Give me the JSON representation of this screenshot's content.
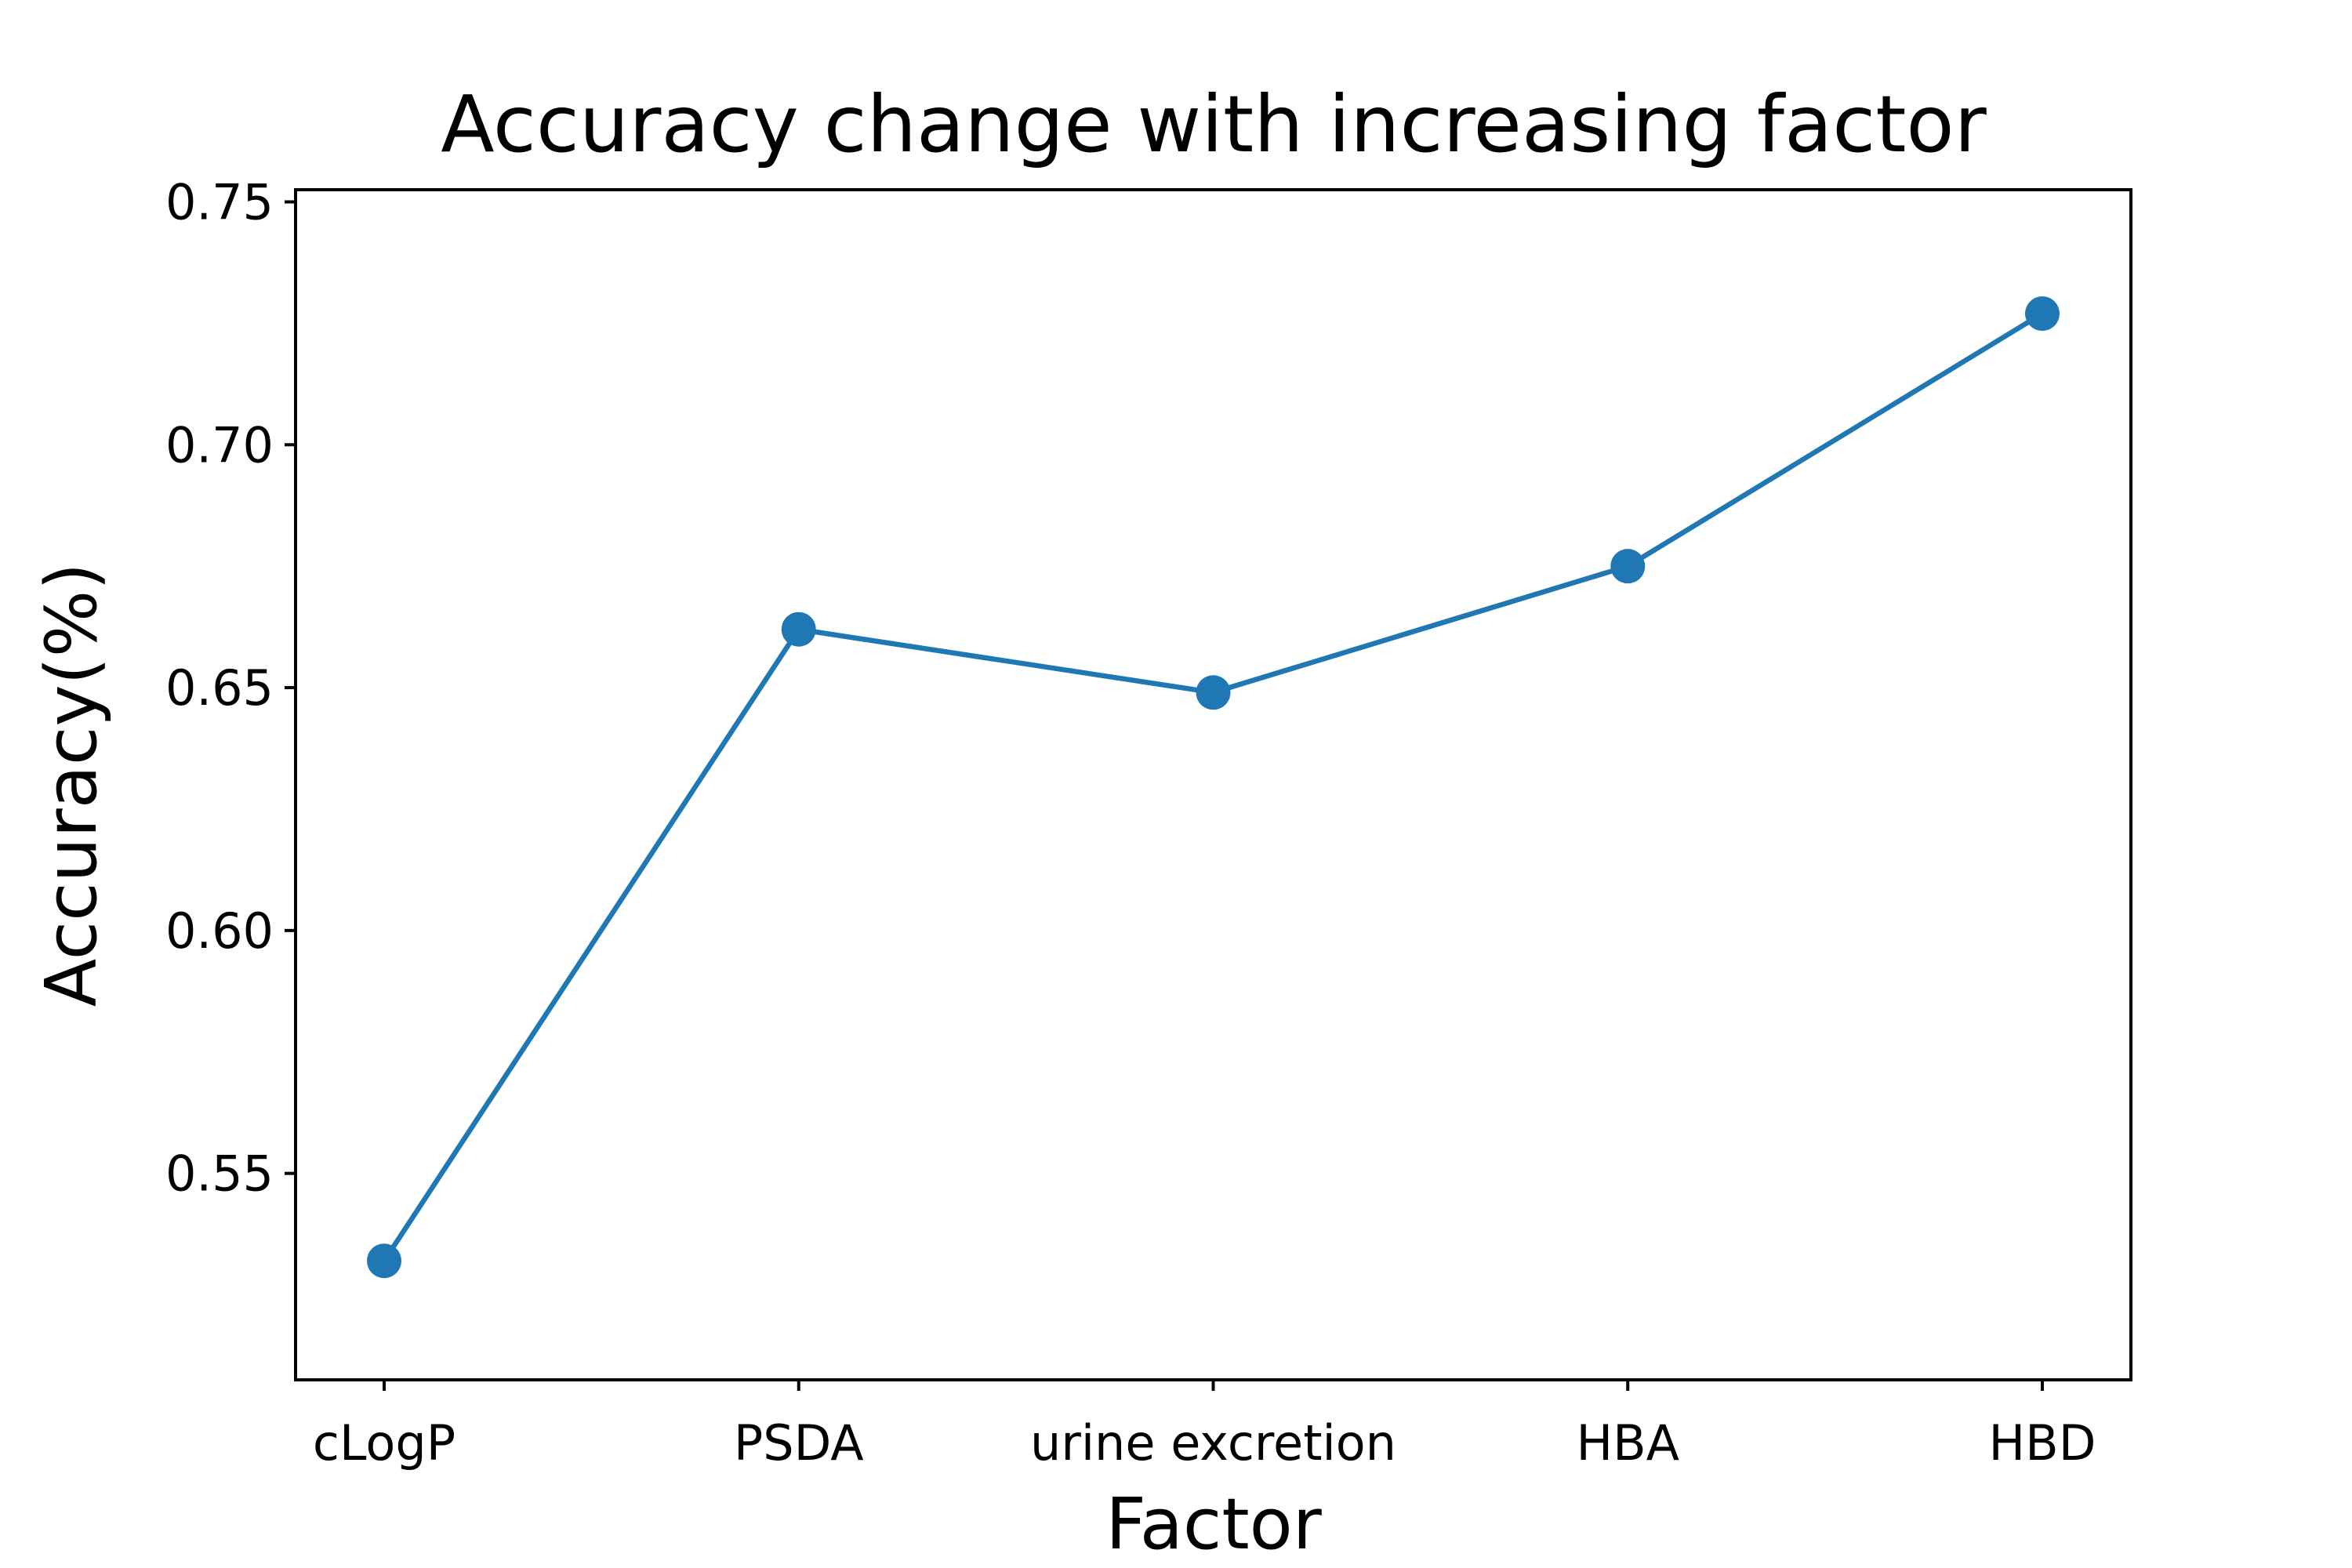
{
  "chart_data": {
    "type": "line",
    "title": "Accuracy change with increasing factor",
    "xlabel": "Factor",
    "ylabel": "Accuracy(%)",
    "categories": [
      "cLogP",
      "PSDA",
      "urine excretion",
      "HBA",
      "HBD"
    ],
    "series": [
      {
        "values": [
          0.532,
          0.662,
          0.649,
          0.675,
          0.727
        ],
        "color": "#1f77b4",
        "marker": "circle"
      }
    ],
    "ylim": [
      0.5075,
      0.7525
    ],
    "yticks": [
      0.55,
      0.6,
      0.65,
      0.7,
      0.75
    ],
    "ytick_labels": [
      "0.55",
      "0.60",
      "0.65",
      "0.70",
      "0.75"
    ],
    "grid": false,
    "legend": "none"
  }
}
